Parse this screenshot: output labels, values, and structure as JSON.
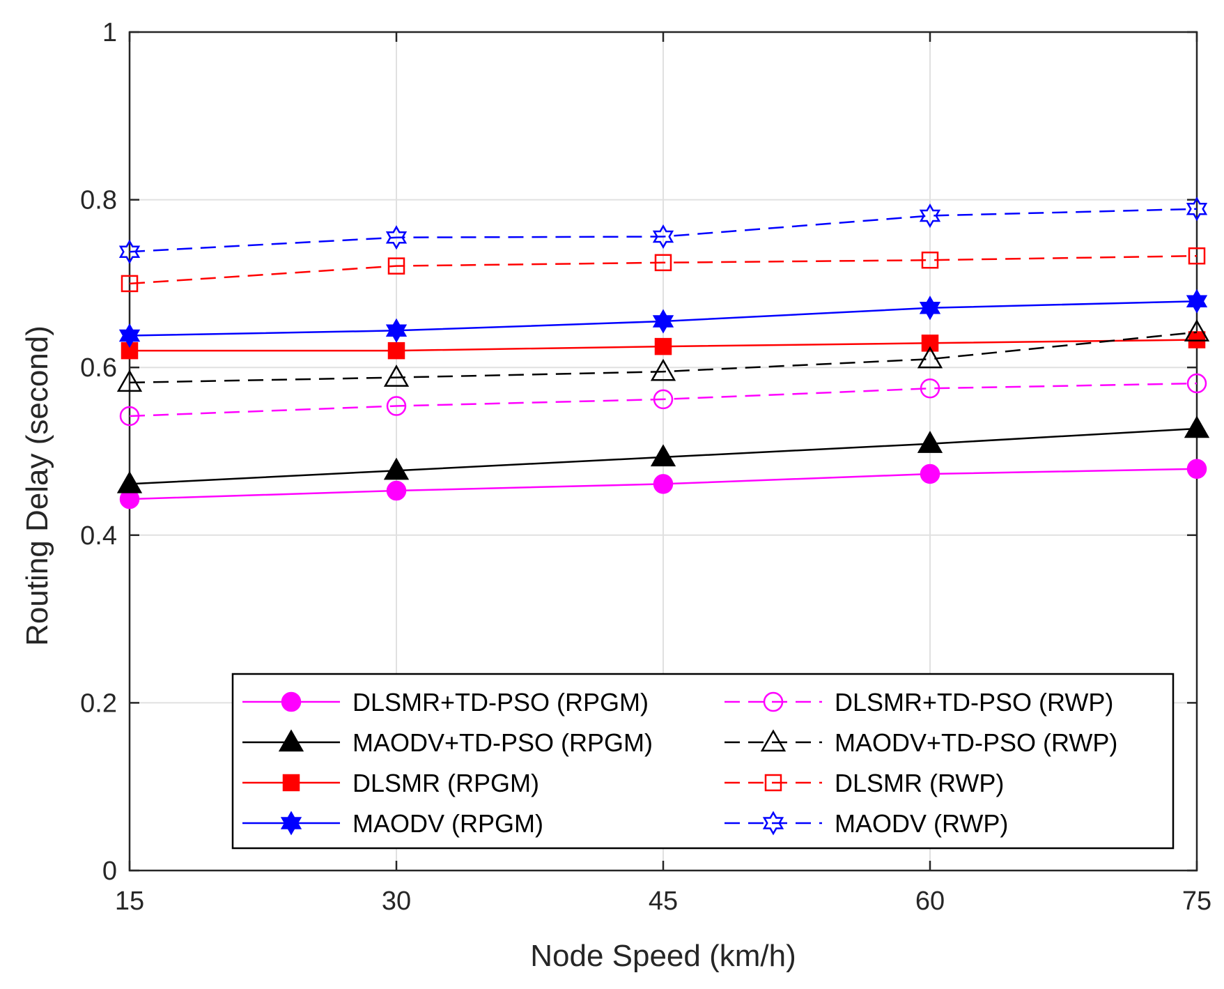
{
  "chart_data": {
    "type": "line",
    "title": "",
    "xlabel": "Node Speed (km/h)",
    "ylabel": "Routing Delay (second)",
    "x": [
      15,
      30,
      45,
      60,
      75
    ],
    "xticks": [
      "15",
      "30",
      "45",
      "60",
      "75"
    ],
    "yticks": [
      "0",
      "0.2",
      "0.4",
      "0.6",
      "0.8",
      "1"
    ],
    "xlim": [
      15,
      75
    ],
    "ylim": [
      0,
      1
    ],
    "grid": true,
    "legend_position": "bottom-right",
    "series": [
      {
        "name": "DLSMR+TD-PSO (RPGM)",
        "color": "#ff00ff",
        "dash": "solid",
        "marker": "circle",
        "filled": true,
        "values": [
          0.443,
          0.453,
          0.461,
          0.473,
          0.479
        ]
      },
      {
        "name": "MAODV+TD-PSO (RPGM)",
        "color": "#000000",
        "dash": "solid",
        "marker": "triangle",
        "filled": true,
        "values": [
          0.461,
          0.477,
          0.493,
          0.509,
          0.527
        ]
      },
      {
        "name": "DLSMR (RPGM)",
        "color": "#ff0000",
        "dash": "solid",
        "marker": "square",
        "filled": true,
        "values": [
          0.62,
          0.62,
          0.625,
          0.629,
          0.633
        ]
      },
      {
        "name": "MAODV (RPGM)",
        "color": "#0000ff",
        "dash": "solid",
        "marker": "hexagram",
        "filled": true,
        "values": [
          0.638,
          0.644,
          0.655,
          0.671,
          0.679
        ]
      },
      {
        "name": "DLSMR+TD-PSO (RWP)",
        "color": "#ff00ff",
        "dash": "dashed",
        "marker": "circle",
        "filled": false,
        "values": [
          0.542,
          0.554,
          0.562,
          0.575,
          0.581
        ]
      },
      {
        "name": "MAODV+TD-PSO (RWP)",
        "color": "#000000",
        "dash": "dashed",
        "marker": "triangle",
        "filled": false,
        "values": [
          0.582,
          0.588,
          0.595,
          0.61,
          0.642
        ]
      },
      {
        "name": "DLSMR (RWP)",
        "color": "#ff0000",
        "dash": "dashed",
        "marker": "square",
        "filled": false,
        "values": [
          0.7,
          0.721,
          0.725,
          0.728,
          0.733
        ]
      },
      {
        "name": "MAODV (RWP)",
        "color": "#0000ff",
        "dash": "dashed",
        "marker": "hexagram",
        "filled": false,
        "values": [
          0.738,
          0.755,
          0.756,
          0.781,
          0.789
        ]
      }
    ]
  }
}
